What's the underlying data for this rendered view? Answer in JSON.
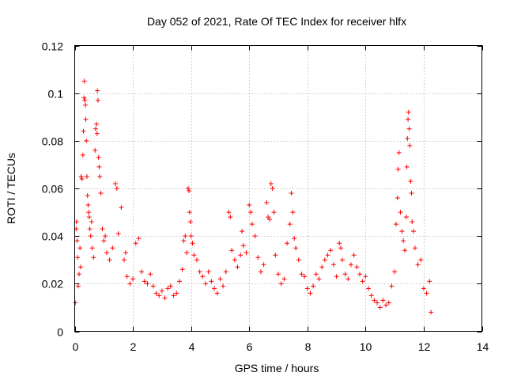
{
  "chart_data": {
    "type": "scatter",
    "title": "Day 052 of 2021, Rate Of TEC Index for receiver hlfx",
    "xlabel": "GPS time / hours",
    "ylabel": "ROTI / TECUs",
    "xlim": [
      0,
      14
    ],
    "ylim": [
      0,
      0.12
    ],
    "xticks": [
      0,
      2,
      4,
      6,
      8,
      10,
      12,
      14
    ],
    "xtick_labels": [
      "0",
      "2",
      "4",
      "6",
      "8",
      "10",
      "12",
      "14"
    ],
    "yticks": [
      0,
      0.02,
      0.04,
      0.06,
      0.08,
      0.1,
      0.12
    ],
    "ytick_labels": [
      "0",
      "0.02",
      "0.04",
      "0.06",
      "0.08",
      "0.1",
      "0.12"
    ],
    "grid": true,
    "marker": "+",
    "color": "#ff0000",
    "series": [
      {
        "name": "ROTI",
        "points": [
          [
            0.02,
            0.012
          ],
          [
            0.05,
            0.043
          ],
          [
            0.06,
            0.046
          ],
          [
            0.08,
            0.038
          ],
          [
            0.1,
            0.031
          ],
          [
            0.12,
            0.019
          ],
          [
            0.15,
            0.024
          ],
          [
            0.18,
            0.035
          ],
          [
            0.2,
            0.027
          ],
          [
            0.22,
            0.065
          ],
          [
            0.25,
            0.064
          ],
          [
            0.28,
            0.074
          ],
          [
            0.3,
            0.084
          ],
          [
            0.32,
            0.098
          ],
          [
            0.33,
            0.105
          ],
          [
            0.35,
            0.097
          ],
          [
            0.37,
            0.095
          ],
          [
            0.38,
            0.089
          ],
          [
            0.4,
            0.08
          ],
          [
            0.42,
            0.065
          ],
          [
            0.44,
            0.057
          ],
          [
            0.46,
            0.053
          ],
          [
            0.48,
            0.05
          ],
          [
            0.5,
            0.048
          ],
          [
            0.52,
            0.043
          ],
          [
            0.55,
            0.04
          ],
          [
            0.58,
            0.046
          ],
          [
            0.6,
            0.035
          ],
          [
            0.65,
            0.031
          ],
          [
            0.7,
            0.076
          ],
          [
            0.72,
            0.085
          ],
          [
            0.75,
            0.087
          ],
          [
            0.77,
            0.083
          ],
          [
            0.78,
            0.101
          ],
          [
            0.8,
            0.097
          ],
          [
            0.82,
            0.073
          ],
          [
            0.84,
            0.069
          ],
          [
            0.86,
            0.065
          ],
          [
            0.9,
            0.058
          ],
          [
            0.95,
            0.043
          ],
          [
            1.0,
            0.038
          ],
          [
            1.05,
            0.04
          ],
          [
            1.1,
            0.033
          ],
          [
            1.2,
            0.03
          ],
          [
            1.3,
            0.035
          ],
          [
            1.4,
            0.062
          ],
          [
            1.45,
            0.06
          ],
          [
            1.5,
            0.041
          ],
          [
            1.6,
            0.052
          ],
          [
            1.7,
            0.03
          ],
          [
            1.75,
            0.033
          ],
          [
            1.8,
            0.023
          ],
          [
            1.9,
            0.02
          ],
          [
            2.0,
            0.022
          ],
          [
            2.1,
            0.037
          ],
          [
            2.2,
            0.039
          ],
          [
            2.3,
            0.025
          ],
          [
            2.4,
            0.021
          ],
          [
            2.5,
            0.02
          ],
          [
            2.6,
            0.024
          ],
          [
            2.7,
            0.019
          ],
          [
            2.8,
            0.016
          ],
          [
            2.9,
            0.015
          ],
          [
            3.0,
            0.017
          ],
          [
            3.1,
            0.014
          ],
          [
            3.2,
            0.018
          ],
          [
            3.3,
            0.019
          ],
          [
            3.4,
            0.015
          ],
          [
            3.5,
            0.016
          ],
          [
            3.6,
            0.021
          ],
          [
            3.7,
            0.026
          ],
          [
            3.75,
            0.038
          ],
          [
            3.8,
            0.04
          ],
          [
            3.85,
            0.033
          ],
          [
            3.9,
            0.06
          ],
          [
            3.93,
            0.059
          ],
          [
            3.95,
            0.05
          ],
          [
            3.98,
            0.046
          ],
          [
            4.0,
            0.04
          ],
          [
            4.05,
            0.037
          ],
          [
            4.1,
            0.032
          ],
          [
            4.2,
            0.03
          ],
          [
            4.3,
            0.025
          ],
          [
            4.4,
            0.023
          ],
          [
            4.5,
            0.02
          ],
          [
            4.6,
            0.025
          ],
          [
            4.7,
            0.021
          ],
          [
            4.8,
            0.018
          ],
          [
            4.9,
            0.016
          ],
          [
            5.0,
            0.022
          ],
          [
            5.1,
            0.019
          ],
          [
            5.2,
            0.025
          ],
          [
            5.3,
            0.05
          ],
          [
            5.35,
            0.048
          ],
          [
            5.4,
            0.034
          ],
          [
            5.5,
            0.03
          ],
          [
            5.6,
            0.027
          ],
          [
            5.7,
            0.032
          ],
          [
            5.75,
            0.042
          ],
          [
            5.8,
            0.036
          ],
          [
            5.9,
            0.033
          ],
          [
            6.0,
            0.053
          ],
          [
            6.05,
            0.05
          ],
          [
            6.1,
            0.045
          ],
          [
            6.2,
            0.04
          ],
          [
            6.3,
            0.031
          ],
          [
            6.4,
            0.025
          ],
          [
            6.5,
            0.028
          ],
          [
            6.6,
            0.054
          ],
          [
            6.65,
            0.048
          ],
          [
            6.7,
            0.047
          ],
          [
            6.75,
            0.062
          ],
          [
            6.8,
            0.06
          ],
          [
            6.85,
            0.05
          ],
          [
            6.9,
            0.032
          ],
          [
            7.0,
            0.024
          ],
          [
            7.1,
            0.02
          ],
          [
            7.2,
            0.022
          ],
          [
            7.3,
            0.037
          ],
          [
            7.4,
            0.045
          ],
          [
            7.45,
            0.058
          ],
          [
            7.5,
            0.05
          ],
          [
            7.55,
            0.039
          ],
          [
            7.6,
            0.035
          ],
          [
            7.7,
            0.03
          ],
          [
            7.8,
            0.024
          ],
          [
            7.9,
            0.023
          ],
          [
            8.0,
            0.018
          ],
          [
            8.1,
            0.016
          ],
          [
            8.2,
            0.019
          ],
          [
            8.3,
            0.024
          ],
          [
            8.4,
            0.022
          ],
          [
            8.5,
            0.027
          ],
          [
            8.6,
            0.03
          ],
          [
            8.7,
            0.032
          ],
          [
            8.8,
            0.034
          ],
          [
            8.9,
            0.028
          ],
          [
            9.0,
            0.023
          ],
          [
            9.1,
            0.037
          ],
          [
            9.15,
            0.035
          ],
          [
            9.2,
            0.03
          ],
          [
            9.3,
            0.024
          ],
          [
            9.4,
            0.022
          ],
          [
            9.5,
            0.028
          ],
          [
            9.6,
            0.032
          ],
          [
            9.7,
            0.027
          ],
          [
            9.8,
            0.024
          ],
          [
            9.9,
            0.021
          ],
          [
            10.0,
            0.023
          ],
          [
            10.1,
            0.018
          ],
          [
            10.2,
            0.015
          ],
          [
            10.3,
            0.013
          ],
          [
            10.4,
            0.012
          ],
          [
            10.5,
            0.01
          ],
          [
            10.6,
            0.013
          ],
          [
            10.7,
            0.011
          ],
          [
            10.8,
            0.012
          ],
          [
            10.9,
            0.019
          ],
          [
            11.0,
            0.025
          ],
          [
            11.05,
            0.045
          ],
          [
            11.1,
            0.056
          ],
          [
            11.12,
            0.068
          ],
          [
            11.15,
            0.075
          ],
          [
            11.2,
            0.05
          ],
          [
            11.25,
            0.042
          ],
          [
            11.3,
            0.038
          ],
          [
            11.35,
            0.034
          ],
          [
            11.4,
            0.048
          ],
          [
            11.42,
            0.069
          ],
          [
            11.44,
            0.081
          ],
          [
            11.46,
            0.089
          ],
          [
            11.48,
            0.092
          ],
          [
            11.5,
            0.085
          ],
          [
            11.52,
            0.078
          ],
          [
            11.55,
            0.063
          ],
          [
            11.58,
            0.058
          ],
          [
            11.6,
            0.046
          ],
          [
            11.65,
            0.042
          ],
          [
            11.7,
            0.035
          ],
          [
            11.8,
            0.028
          ],
          [
            11.9,
            0.03
          ],
          [
            12.0,
            0.018
          ],
          [
            12.1,
            0.016
          ],
          [
            12.2,
            0.021
          ],
          [
            12.25,
            0.008
          ]
        ]
      }
    ]
  }
}
